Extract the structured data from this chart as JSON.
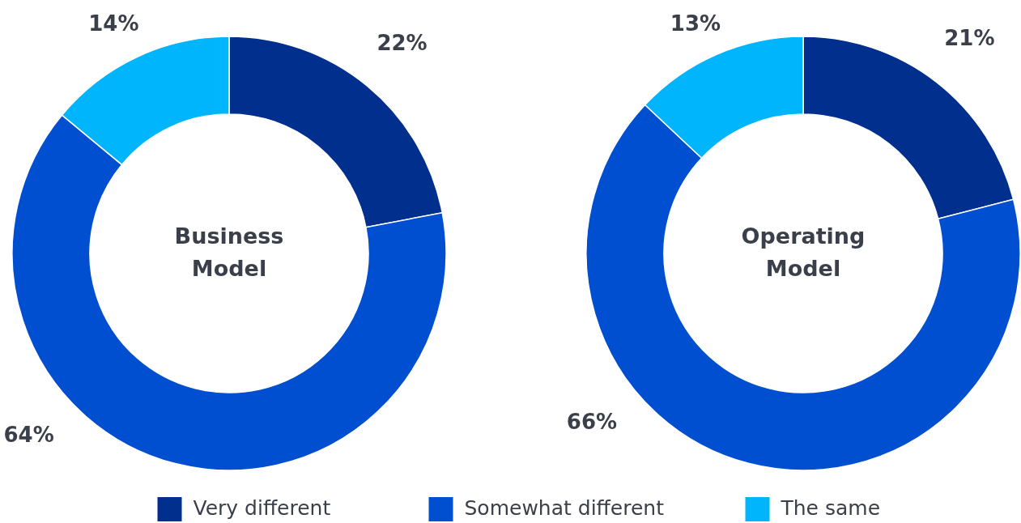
{
  "chart_data": [
    {
      "type": "donut",
      "title": "Business Model",
      "categories": [
        "Very different",
        "Somewhat different",
        "The same"
      ],
      "values": [
        22,
        64,
        14
      ],
      "colors": [
        "#002f8e",
        "#004fd0",
        "#00b5fb"
      ],
      "value_labels": [
        "22%",
        "64%",
        "14%"
      ],
      "legend": "bottom"
    },
    {
      "type": "donut",
      "title": "Operating Model",
      "categories": [
        null,
        null,
        null
      ],
      "values": [
        21,
        66,
        13
      ],
      "colors": [
        "#002f8e",
        "#004fd0",
        "#00b5fb"
      ],
      "value_labels": [
        "21%",
        "66%",
        "13%"
      ]
    }
  ]
}
